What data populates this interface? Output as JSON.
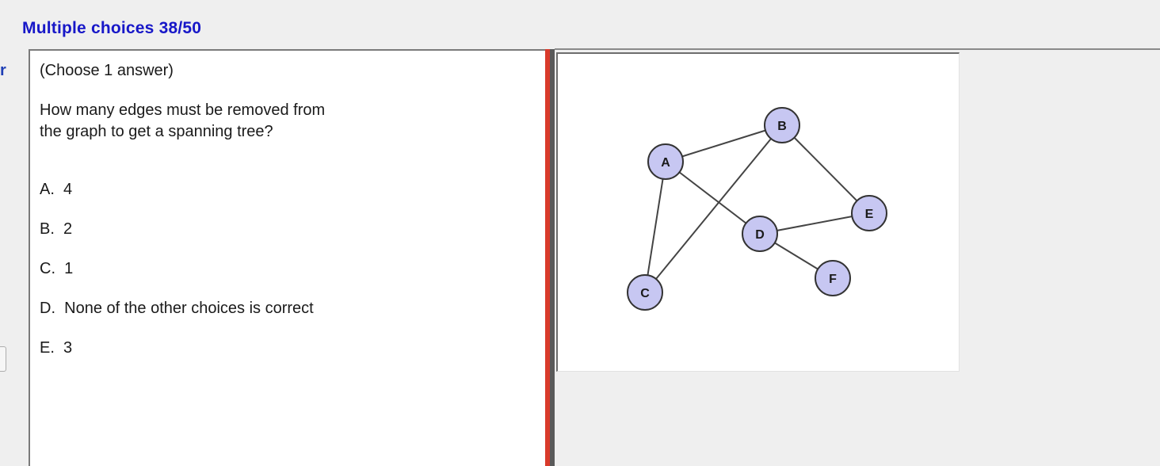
{
  "header": {
    "title": "Multiple choices 38/50"
  },
  "left_edge": {
    "glyph": "r"
  },
  "question": {
    "instruction": "(Choose 1 answer)",
    "prompt_line1": "How many edges must be removed from",
    "prompt_line2": "the graph to get a spanning tree?",
    "choices": [
      {
        "letter": "A.",
        "text": "4"
      },
      {
        "letter": "B.",
        "text": "2"
      },
      {
        "letter": "C.",
        "text": "1"
      },
      {
        "letter": "D.",
        "text": "None of the other choices is correct"
      },
      {
        "letter": "E.",
        "text": "3"
      }
    ]
  },
  "graph": {
    "nodes": [
      "A",
      "B",
      "C",
      "D",
      "E",
      "F"
    ],
    "edges": [
      [
        "A",
        "B"
      ],
      [
        "A",
        "C"
      ],
      [
        "A",
        "D"
      ],
      [
        "B",
        "C"
      ],
      [
        "B",
        "E"
      ],
      [
        "D",
        "E"
      ],
      [
        "D",
        "F"
      ]
    ],
    "node_fill": "#c7c7f2",
    "node_stroke": "#333333",
    "edge_color": "#444444"
  },
  "colors": {
    "title_blue": "#1717c8",
    "splitter_red": "#d93a2b"
  }
}
